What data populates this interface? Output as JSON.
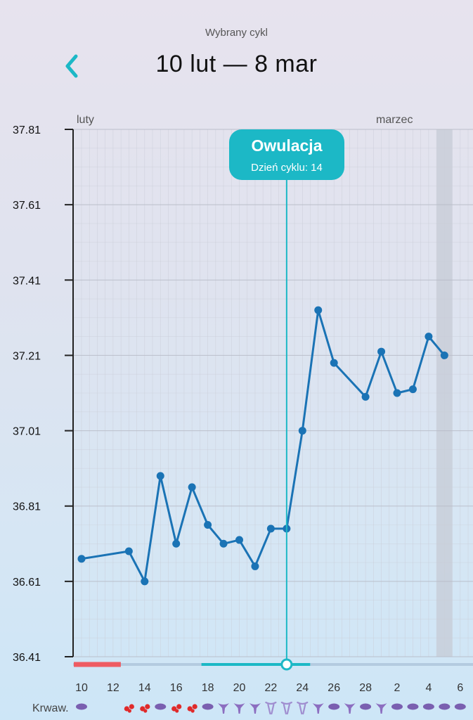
{
  "header": {
    "subtitle": "Wybrany cykl",
    "title": "10 lut — 8 mar",
    "back_icon": "chevron-left-icon"
  },
  "colors": {
    "line": "#1a73b5",
    "ovulation": "#1cb8c6",
    "period": "#ee5b62",
    "grid": "#c9ccd6",
    "highlight": "#c5cbd6",
    "mucus_dry": "#7a5fb0",
    "mucus_sticky": "#8c6ec0",
    "mucus_eggwhite": "#a08ed0",
    "blood": "#e02a2a"
  },
  "months": [
    "luty",
    "marzec"
  ],
  "ovulation": {
    "title": "Owulacja",
    "subtitle": "Dzień cyklu: 14",
    "day_index": 13
  },
  "bleeding_row_label": "Krwaw.",
  "chart_data": {
    "type": "line",
    "ylim": [
      36.41,
      37.81
    ],
    "yticks": [
      "37.81",
      "37.61",
      "37.41",
      "37.21",
      "37.01",
      "36.81",
      "36.61",
      "36.41"
    ],
    "x_labels": [
      "10",
      "12",
      "14",
      "16",
      "18",
      "20",
      "22",
      "24",
      "26",
      "28",
      "2",
      "4",
      "6"
    ],
    "days": [
      "10 lut",
      "11 lut",
      "12 lut",
      "13 lut",
      "14 lut",
      "15 lut",
      "16 lut",
      "17 lut",
      "18 lut",
      "19 lut",
      "20 lut",
      "21 lut",
      "22 lut",
      "23 lut",
      "24 lut",
      "25 lut",
      "26 lut",
      "27 lut",
      "28 lut",
      "1 mar",
      "2 mar",
      "3 mar",
      "4 mar",
      "5 mar",
      "6 mar"
    ],
    "series": [
      {
        "values": [
          36.67,
          null,
          null,
          36.69,
          36.61,
          36.89,
          36.71,
          36.86,
          36.76,
          36.71,
          36.72,
          36.65,
          36.75,
          36.75,
          37.01,
          37.33,
          37.19,
          null,
          37.1,
          37.22,
          37.11,
          37.12,
          37.26,
          37.21,
          null
        ]
      }
    ],
    "highlight_day_index": 23,
    "period_day_range": [
      0,
      2
    ],
    "fertile_day_range": [
      8,
      14
    ],
    "bleeding": [
      {
        "type": "mucus-dry"
      },
      {
        "type": "none"
      },
      {
        "type": "none"
      },
      {
        "type": "blood"
      },
      {
        "type": "blood"
      },
      {
        "type": "mucus-dry"
      },
      {
        "type": "blood"
      },
      {
        "type": "blood"
      },
      {
        "type": "mucus-dry"
      },
      {
        "type": "mucus-sticky"
      },
      {
        "type": "mucus-sticky"
      },
      {
        "type": "mucus-sticky"
      },
      {
        "type": "mucus-eggwhite"
      },
      {
        "type": "mucus-eggwhite"
      },
      {
        "type": "mucus-eggwhite"
      },
      {
        "type": "mucus-sticky"
      },
      {
        "type": "mucus-dry"
      },
      {
        "type": "mucus-sticky"
      },
      {
        "type": "mucus-dry"
      },
      {
        "type": "mucus-sticky"
      },
      {
        "type": "mucus-dry"
      },
      {
        "type": "mucus-dry"
      },
      {
        "type": "mucus-dry"
      },
      {
        "type": "mucus-dry"
      },
      {
        "type": "mucus-dry"
      }
    ]
  }
}
